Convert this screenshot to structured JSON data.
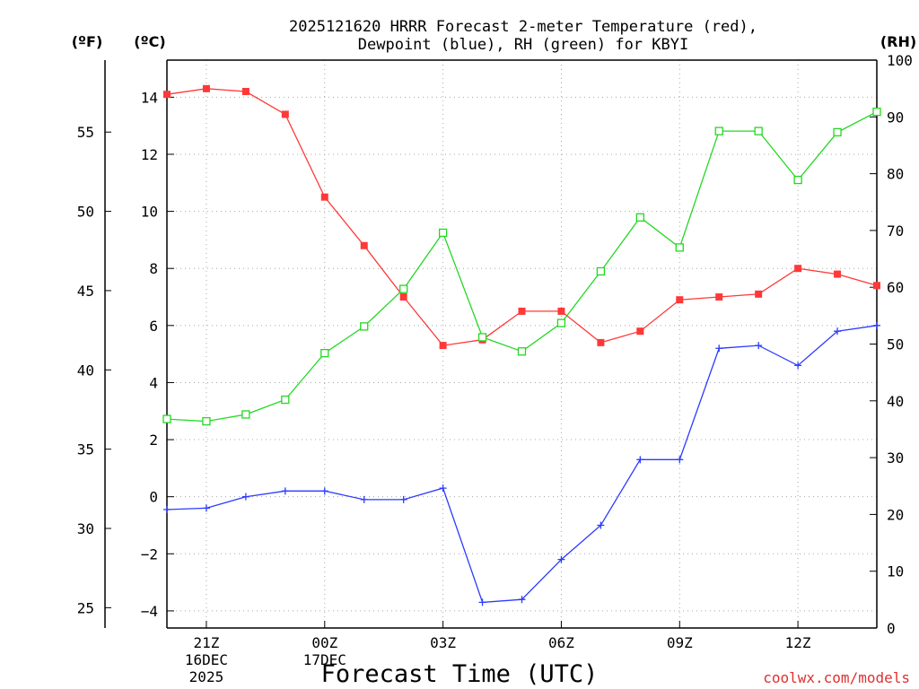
{
  "chart_data": {
    "type": "line",
    "title_lines": [
      "2025121620 HRRR Forecast 2-meter Temperature (red),",
      "Dewpoint (blue), RH (green) for KBYI"
    ],
    "xlabel": "Forecast Time (UTC)",
    "credit": "coolwx.com/models",
    "colors": {
      "temperature": "#ff3838",
      "dewpoint": "#2b3bff",
      "rh": "#22d822",
      "credit": "#e03030"
    },
    "x": [
      20,
      21,
      22,
      23,
      24,
      25,
      26,
      27,
      28,
      29,
      30,
      31,
      32,
      33,
      34,
      35,
      36,
      37,
      38
    ],
    "xlim": [
      20,
      38
    ],
    "x_ticks": [
      {
        "x": 21,
        "lines": [
          "21Z",
          "16DEC",
          "2025"
        ]
      },
      {
        "x": 24,
        "lines": [
          "00Z",
          "17DEC"
        ]
      },
      {
        "x": 27,
        "lines": [
          "03Z"
        ]
      },
      {
        "x": 30,
        "lines": [
          "06Z"
        ]
      },
      {
        "x": 33,
        "lines": [
          "09Z"
        ]
      },
      {
        "x": 36,
        "lines": [
          "12Z"
        ]
      }
    ],
    "celsius_axis": {
      "unit": "(ºC)",
      "ylim": [
        -4.6,
        15.3
      ],
      "ticks": [
        -4,
        -2,
        0,
        2,
        4,
        6,
        8,
        10,
        12,
        14
      ],
      "tick_labels": [
        "−4",
        "−2",
        "0",
        "2",
        "4",
        "6",
        "8",
        "10",
        "12",
        "14"
      ]
    },
    "fahrenheit_axis": {
      "unit": "(ºF)",
      "ticks": [
        25,
        30,
        35,
        40,
        45,
        50,
        55
      ],
      "tick_labels": [
        "25",
        "30",
        "35",
        "40",
        "45",
        "50",
        "55"
      ]
    },
    "rh_axis": {
      "unit": "(RH)",
      "ylim": [
        0,
        100
      ],
      "ticks": [
        0,
        10,
        20,
        30,
        40,
        50,
        60,
        70,
        80,
        90,
        100
      ],
      "tick_labels": [
        "0",
        "10",
        "20",
        "30",
        "40",
        "50",
        "60",
        "70",
        "80",
        "90",
        "100"
      ]
    },
    "series": [
      {
        "name": "Temperature",
        "unit": "C",
        "marker": "filled-square",
        "values": [
          14.1,
          14.3,
          14.2,
          13.4,
          10.5,
          8.8,
          7.0,
          5.3,
          5.5,
          6.5,
          6.5,
          5.4,
          5.8,
          6.9,
          7.0,
          7.1,
          8.0,
          7.8,
          7.4
        ]
      },
      {
        "name": "Dewpoint",
        "unit": "C",
        "marker": "plus",
        "values": [
          -0.45,
          -0.4,
          0.0,
          0.2,
          0.2,
          -0.1,
          -0.1,
          0.3,
          -3.7,
          -3.6,
          -2.2,
          -1.0,
          1.3,
          1.3,
          5.2,
          5.3,
          4.6,
          5.8,
          6.0
        ]
      },
      {
        "name": "RH",
        "unit": "%",
        "marker": "open-square",
        "values": [
          36.8,
          36.4,
          37.6,
          40.2,
          48.4,
          53.1,
          59.7,
          69.6,
          51.2,
          48.7,
          53.7,
          62.8,
          72.3,
          67.0,
          87.5,
          87.5,
          78.9,
          87.3,
          90.9
        ]
      }
    ]
  }
}
